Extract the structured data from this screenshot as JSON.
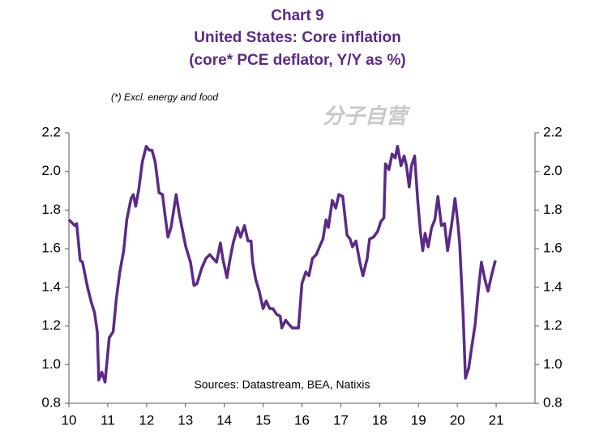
{
  "chart_data": {
    "type": "line",
    "title": "Chart 9",
    "subtitle": [
      "United States: Core inflation",
      "(core* PCE deflator, Y/Y as %)"
    ],
    "note": "(*) Excl. energy and food",
    "source": "Sources: Datastream, BEA, Natixis",
    "watermark": "分子自营",
    "xlim": [
      10,
      22
    ],
    "xticks": [
      10,
      11,
      12,
      13,
      14,
      15,
      16,
      17,
      18,
      19,
      20,
      21
    ],
    "ylim": [
      0.8,
      2.2
    ],
    "yticks": [
      0.8,
      {
        "value": 1.0,
        "label": "1.0"
      },
      1.2,
      1.4,
      1.6,
      1.8,
      {
        "value": 2.0,
        "label": "2.0"
      },
      2.2
    ],
    "y2lim": [
      0.8,
      2.2
    ],
    "y2ticks": [
      0.8,
      {
        "value": 1.0,
        "label": "1.0"
      },
      1.2,
      1.4,
      1.6,
      1.8,
      {
        "value": 2.0,
        "label": "2.0"
      },
      2.2
    ],
    "grid": false,
    "series": [
      {
        "color": "#5b2a86",
        "x": [
          10.0,
          10.15,
          10.2,
          10.29,
          10.35,
          10.48,
          10.58,
          10.66,
          10.73,
          10.77,
          10.85,
          10.93,
          11.04,
          11.14,
          11.22,
          11.31,
          11.41,
          11.49,
          11.6,
          11.66,
          11.72,
          11.8,
          11.89,
          11.99,
          12.07,
          12.14,
          12.22,
          12.32,
          12.41,
          12.47,
          12.55,
          12.63,
          12.76,
          12.84,
          13.01,
          13.13,
          13.22,
          13.3,
          13.42,
          13.53,
          13.63,
          13.71,
          13.8,
          13.9,
          13.96,
          14.07,
          14.15,
          14.23,
          14.34,
          14.42,
          14.52,
          14.61,
          14.69,
          14.73,
          14.81,
          14.9,
          15.0,
          15.08,
          15.17,
          15.25,
          15.35,
          15.44,
          15.48,
          15.58,
          15.66,
          15.75,
          15.83,
          15.91,
          16.0,
          16.1,
          16.18,
          16.27,
          16.37,
          16.45,
          16.54,
          16.62,
          16.68,
          16.78,
          16.87,
          16.95,
          17.05,
          17.16,
          17.24,
          17.3,
          17.39,
          17.49,
          17.57,
          17.68,
          17.74,
          17.84,
          17.95,
          18.03,
          18.11,
          18.15,
          18.24,
          18.32,
          18.4,
          18.46,
          18.55,
          18.63,
          18.69,
          18.76,
          18.82,
          18.9,
          18.98,
          19.05,
          19.11,
          19.17,
          19.25,
          19.34,
          19.42,
          19.5,
          19.59,
          19.67,
          19.75,
          19.85,
          19.94,
          20.02,
          20.06,
          20.15,
          20.21,
          20.29,
          20.37,
          20.46,
          20.54,
          20.62,
          20.71,
          20.79,
          20.88,
          20.98
        ],
        "values": [
          1.75,
          1.72,
          1.73,
          1.54,
          1.53,
          1.4,
          1.32,
          1.27,
          1.17,
          0.92,
          0.96,
          0.91,
          1.14,
          1.17,
          1.34,
          1.48,
          1.59,
          1.75,
          1.86,
          1.88,
          1.82,
          1.91,
          2.05,
          2.13,
          2.11,
          2.11,
          2.05,
          1.89,
          1.88,
          1.78,
          1.66,
          1.71,
          1.88,
          1.78,
          1.61,
          1.53,
          1.41,
          1.42,
          1.5,
          1.55,
          1.57,
          1.55,
          1.53,
          1.63,
          1.55,
          1.45,
          1.55,
          1.63,
          1.71,
          1.66,
          1.72,
          1.64,
          1.64,
          1.53,
          1.44,
          1.38,
          1.29,
          1.33,
          1.29,
          1.29,
          1.26,
          1.25,
          1.19,
          1.23,
          1.21,
          1.19,
          1.19,
          1.19,
          1.42,
          1.48,
          1.46,
          1.55,
          1.57,
          1.61,
          1.65,
          1.75,
          1.71,
          1.85,
          1.81,
          1.88,
          1.87,
          1.67,
          1.65,
          1.61,
          1.64,
          1.53,
          1.46,
          1.55,
          1.65,
          1.66,
          1.69,
          1.74,
          1.76,
          2.04,
          2.01,
          2.09,
          2.07,
          2.13,
          2.03,
          2.08,
          2.03,
          1.92,
          2.03,
          2.08,
          1.85,
          1.69,
          1.59,
          1.68,
          1.61,
          1.71,
          1.75,
          1.87,
          1.72,
          1.73,
          1.59,
          1.72,
          1.86,
          1.72,
          1.63,
          1.25,
          0.93,
          0.98,
          1.09,
          1.21,
          1.38,
          1.53,
          1.44,
          1.38,
          1.46,
          1.54
        ]
      }
    ]
  }
}
